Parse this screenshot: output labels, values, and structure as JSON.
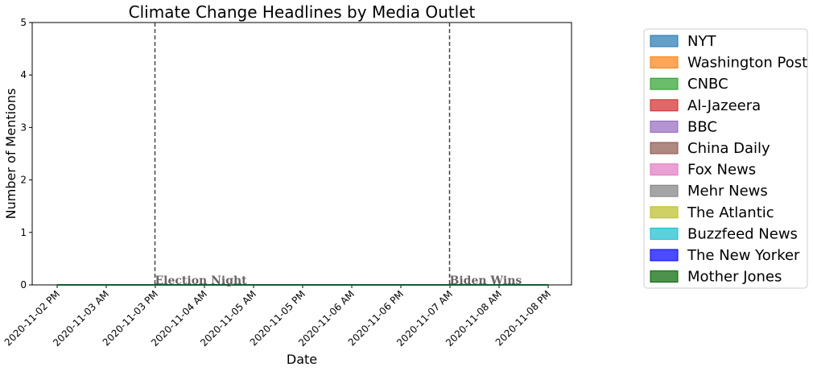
{
  "chart_data": {
    "type": "area",
    "title": "Climate Change Headlines by Media Outlet",
    "xlabel": "Date",
    "ylabel": "Number of Mentions",
    "ylim": [
      0,
      5
    ],
    "yticks": [
      "0",
      "1",
      "2",
      "3",
      "4",
      "5"
    ],
    "categories": [
      "2020-11-02 PM",
      "2020-11-03 AM",
      "2020-11-03 PM",
      "2020-11-04 AM",
      "2020-11-05 AM",
      "2020-11-05 PM",
      "2020-11-06 AM",
      "2020-11-06 PM",
      "2020-11-07 AM",
      "2020-11-08 AM",
      "2020-11-08 PM"
    ],
    "series": [
      {
        "name": "NYT",
        "color": "#1f77b4",
        "values": [
          0,
          0,
          0,
          0,
          0,
          0,
          0,
          0,
          0,
          0,
          0
        ]
      },
      {
        "name": "Washington Post",
        "color": "#ff7f0e",
        "values": [
          0,
          0,
          0,
          0,
          0,
          0,
          0,
          0,
          0,
          0,
          0
        ]
      },
      {
        "name": "CNBC",
        "color": "#2ca02c",
        "values": [
          0,
          0,
          0,
          0,
          0,
          0,
          0,
          0,
          0,
          0,
          0
        ]
      },
      {
        "name": "Al-Jazeera",
        "color": "#d62728",
        "values": [
          0,
          0,
          0,
          0,
          0,
          0,
          0,
          0,
          0,
          0,
          0
        ]
      },
      {
        "name": "BBC",
        "color": "#9467bd",
        "values": [
          0,
          0,
          0,
          0,
          0,
          0,
          0,
          0,
          0,
          0,
          0
        ]
      },
      {
        "name": "China Daily",
        "color": "#8c564b",
        "values": [
          0,
          0,
          0,
          0,
          0,
          0,
          0,
          0,
          0,
          0,
          0
        ]
      },
      {
        "name": "Fox News",
        "color": "#e377c2",
        "values": [
          0,
          0,
          0,
          0,
          0,
          0,
          0,
          0,
          0,
          0,
          0
        ]
      },
      {
        "name": "Mehr News",
        "color": "#7f7f7f",
        "values": [
          0,
          0,
          0,
          0,
          0,
          0,
          0,
          0,
          0,
          0,
          0
        ]
      },
      {
        "name": "The Atlantic",
        "color": "#bcbd22",
        "values": [
          0,
          0,
          0,
          0,
          0,
          0,
          0,
          0,
          0,
          0,
          0
        ]
      },
      {
        "name": "Buzzfeed News",
        "color": "#17becf",
        "values": [
          0,
          0,
          0,
          0,
          0,
          0,
          0,
          0,
          0,
          0,
          0
        ]
      },
      {
        "name": "The New Yorker",
        "color": "#0000ff",
        "values": [
          0,
          0,
          0,
          0,
          0,
          0,
          0,
          0,
          0,
          0,
          0
        ]
      },
      {
        "name": "Mother Jones",
        "color": "#006400",
        "values": [
          0,
          0,
          0,
          0,
          0,
          0,
          0,
          0,
          0,
          0,
          0
        ]
      }
    ],
    "annotations": [
      {
        "text": "Election Night",
        "x": "2020-11-03 PM"
      },
      {
        "text": "Biden Wins",
        "x": "2020-11-07 AM"
      }
    ],
    "grid": false,
    "legend_position": "outside-right"
  }
}
